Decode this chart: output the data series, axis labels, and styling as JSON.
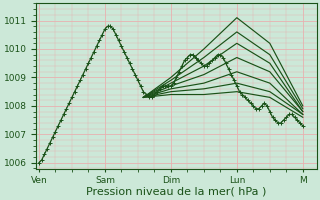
{
  "background_color": "#cce8d8",
  "grid_color": "#e8b0b0",
  "line_color": "#1a5218",
  "marker": "+",
  "markersize": 3,
  "linewidth": 0.9,
  "ylim": [
    1005.8,
    1011.6
  ],
  "yticks": [
    1006,
    1007,
    1008,
    1009,
    1010,
    1011
  ],
  "xlabel": "Pression niveau de la mer( hPa )",
  "xlabel_fontsize": 8,
  "tick_fontsize": 6.5,
  "day_labels": [
    "Ven",
    "Sam",
    "Dim",
    "Lun",
    "M"
  ],
  "day_positions": [
    0,
    24,
    48,
    72,
    96
  ],
  "xlim": [
    -1,
    101
  ],
  "series": [
    {
      "x": [
        0,
        1,
        2,
        3,
        4,
        5,
        6,
        7,
        8,
        9,
        10,
        11,
        12,
        13,
        14,
        15,
        16,
        17,
        18,
        19,
        20,
        21,
        22,
        23,
        24,
        25,
        26,
        27,
        28,
        29,
        30,
        31,
        32,
        33,
        34,
        35,
        36,
        37,
        38,
        39,
        40,
        41,
        42,
        43,
        44,
        45,
        46,
        47,
        48,
        49,
        50,
        51,
        52,
        53,
        54,
        55,
        56,
        57,
        58,
        59,
        60,
        61,
        62,
        63,
        64,
        65,
        66,
        67,
        68,
        69,
        70,
        71,
        72,
        73,
        74,
        75,
        76,
        77,
        78,
        79,
        80,
        81,
        82,
        83,
        84,
        85,
        86,
        87,
        88,
        89,
        90,
        91,
        92,
        93,
        94,
        95,
        96
      ],
      "y": [
        1006.0,
        1006.1,
        1006.3,
        1006.5,
        1006.7,
        1006.9,
        1007.1,
        1007.3,
        1007.5,
        1007.7,
        1007.9,
        1008.1,
        1008.3,
        1008.5,
        1008.7,
        1008.9,
        1009.1,
        1009.3,
        1009.5,
        1009.7,
        1009.9,
        1010.1,
        1010.3,
        1010.5,
        1010.7,
        1010.8,
        1010.8,
        1010.7,
        1010.5,
        1010.3,
        1010.1,
        1009.9,
        1009.7,
        1009.5,
        1009.3,
        1009.1,
        1008.9,
        1008.7,
        1008.5,
        1008.4,
        1008.3,
        1008.3,
        1008.4,
        1008.5,
        1008.6,
        1008.7,
        1008.7,
        1008.7,
        1008.7,
        1008.8,
        1009.0,
        1009.2,
        1009.4,
        1009.6,
        1009.7,
        1009.8,
        1009.8,
        1009.7,
        1009.6,
        1009.5,
        1009.4,
        1009.4,
        1009.5,
        1009.6,
        1009.7,
        1009.8,
        1009.8,
        1009.7,
        1009.5,
        1009.3,
        1009.1,
        1008.9,
        1008.7,
        1008.5,
        1008.4,
        1008.3,
        1008.2,
        1008.1,
        1008.0,
        1007.9,
        1007.9,
        1008.0,
        1008.1,
        1008.0,
        1007.8,
        1007.6,
        1007.5,
        1007.4,
        1007.4,
        1007.5,
        1007.6,
        1007.7,
        1007.7,
        1007.6,
        1007.5,
        1007.4,
        1007.3
      ]
    },
    {
      "x": [
        38,
        48,
        60,
        72,
        84,
        96
      ],
      "y": [
        1008.3,
        1009.0,
        1010.0,
        1011.1,
        1010.2,
        1008.0
      ]
    },
    {
      "x": [
        38,
        48,
        60,
        72,
        84,
        96
      ],
      "y": [
        1008.3,
        1008.9,
        1009.7,
        1010.6,
        1009.8,
        1007.9
      ]
    },
    {
      "x": [
        38,
        48,
        60,
        72,
        84,
        96
      ],
      "y": [
        1008.3,
        1008.8,
        1009.4,
        1010.2,
        1009.5,
        1007.8
      ]
    },
    {
      "x": [
        38,
        48,
        60,
        72,
        84,
        96
      ],
      "y": [
        1008.3,
        1008.7,
        1009.1,
        1009.7,
        1009.2,
        1007.8
      ]
    },
    {
      "x": [
        38,
        48,
        60,
        72,
        84,
        96
      ],
      "y": [
        1008.3,
        1008.6,
        1008.8,
        1009.2,
        1008.8,
        1007.7
      ]
    },
    {
      "x": [
        38,
        48,
        60,
        72,
        84,
        96
      ],
      "y": [
        1008.3,
        1008.5,
        1008.6,
        1008.8,
        1008.5,
        1007.7
      ]
    },
    {
      "x": [
        38,
        48,
        60,
        72,
        84,
        96
      ],
      "y": [
        1008.3,
        1008.4,
        1008.4,
        1008.5,
        1008.3,
        1007.6
      ]
    }
  ]
}
